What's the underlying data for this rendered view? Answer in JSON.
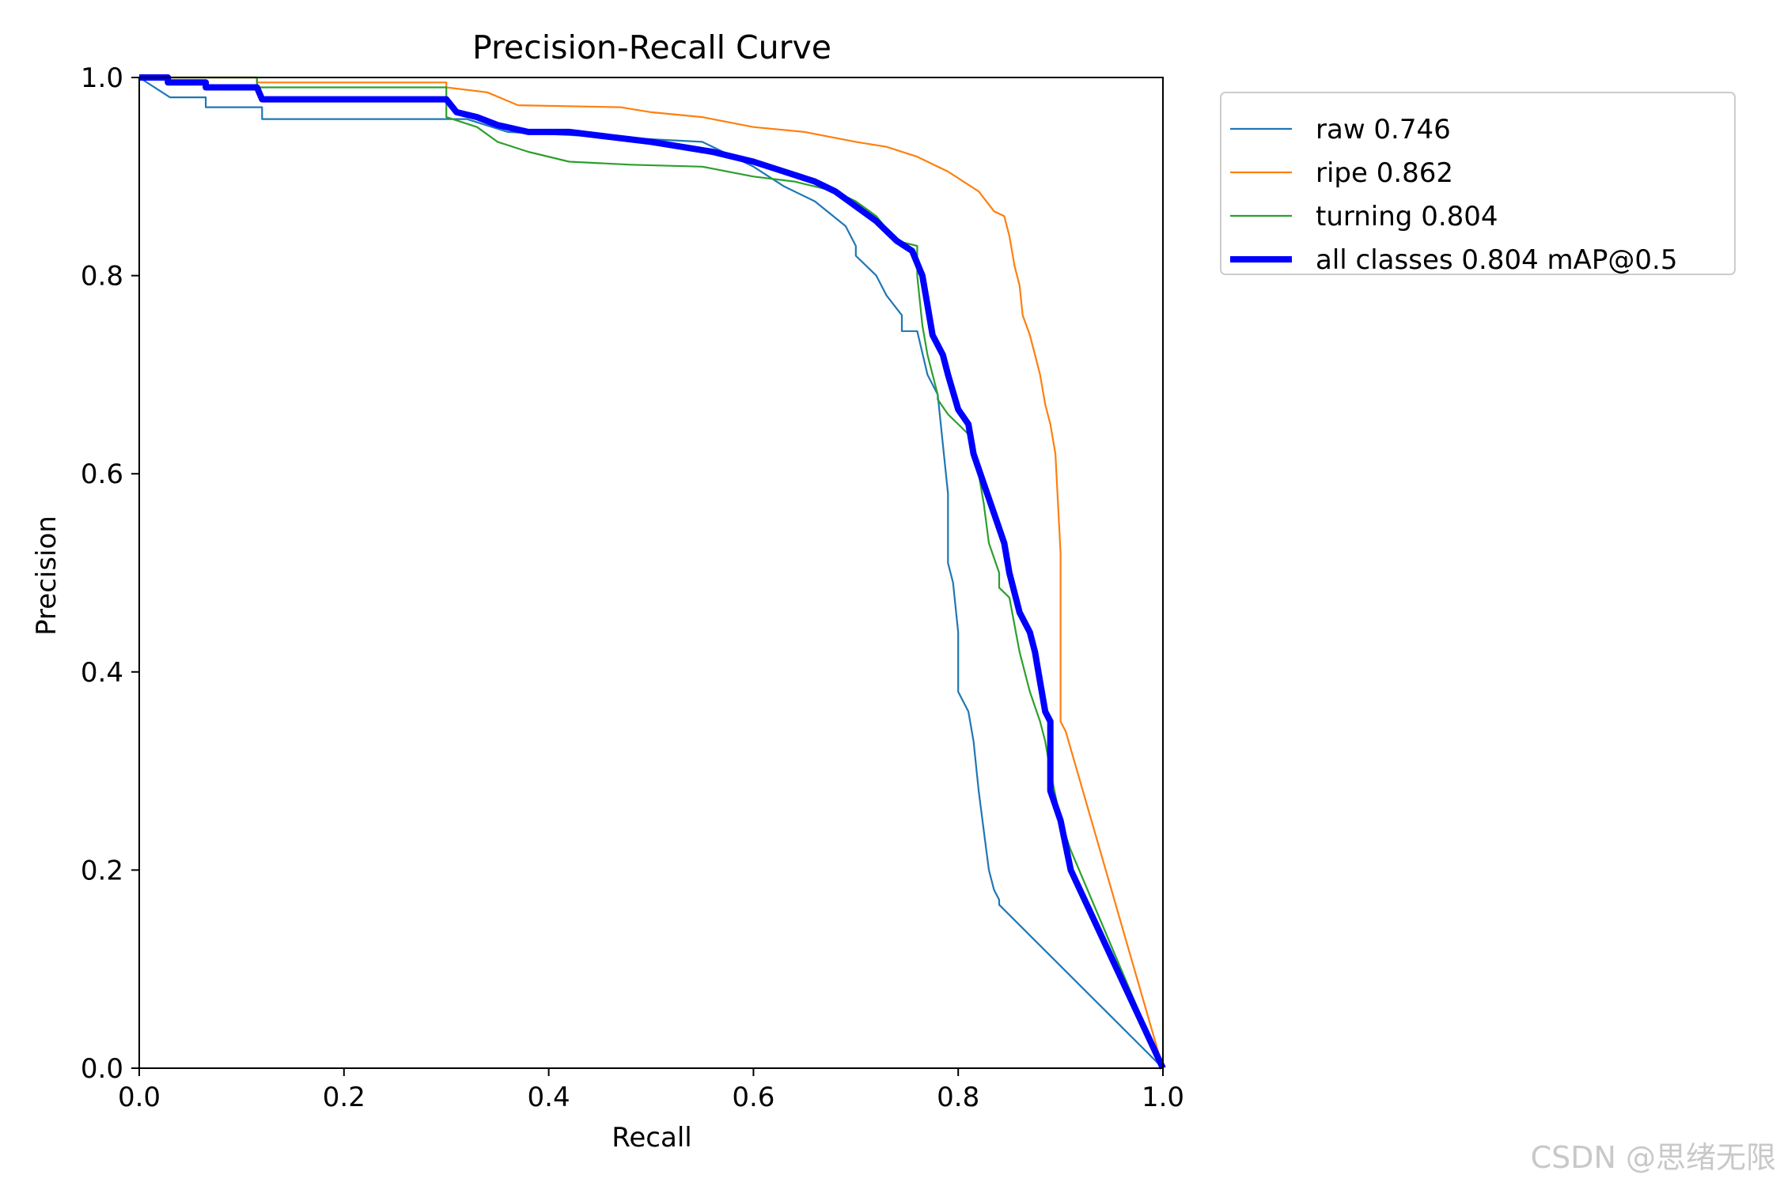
{
  "watermark": "CSDN @思绪无限",
  "chart_data": {
    "type": "line",
    "title": "Precision-Recall Curve",
    "xlabel": "Recall",
    "ylabel": "Precision",
    "xlim": [
      0.0,
      1.0
    ],
    "ylim": [
      0.0,
      1.0
    ],
    "xticks": [
      "0.0",
      "0.2",
      "0.4",
      "0.6",
      "0.8",
      "1.0"
    ],
    "yticks": [
      "0.0",
      "0.2",
      "0.4",
      "0.6",
      "0.8",
      "1.0"
    ],
    "grid": false,
    "legend_position": "outside top-right",
    "series": [
      {
        "name": "raw 0.746",
        "color": "#1f77b4",
        "emphasis": "thin",
        "points": [
          [
            0,
            1.0
          ],
          [
            0.03,
            0.98
          ],
          [
            0.065,
            0.98
          ],
          [
            0.065,
            0.97
          ],
          [
            0.12,
            0.97
          ],
          [
            0.12,
            0.958
          ],
          [
            0.32,
            0.958
          ],
          [
            0.36,
            0.945
          ],
          [
            0.55,
            0.935
          ],
          [
            0.6,
            0.91
          ],
          [
            0.63,
            0.89
          ],
          [
            0.66,
            0.875
          ],
          [
            0.69,
            0.85
          ],
          [
            0.7,
            0.83
          ],
          [
            0.7,
            0.82
          ],
          [
            0.72,
            0.8
          ],
          [
            0.73,
            0.78
          ],
          [
            0.745,
            0.76
          ],
          [
            0.745,
            0.744
          ],
          [
            0.76,
            0.744
          ],
          [
            0.77,
            0.7
          ],
          [
            0.78,
            0.68
          ],
          [
            0.785,
            0.63
          ],
          [
            0.79,
            0.58
          ],
          [
            0.79,
            0.51
          ],
          [
            0.795,
            0.49
          ],
          [
            0.8,
            0.44
          ],
          [
            0.8,
            0.38
          ],
          [
            0.81,
            0.36
          ],
          [
            0.815,
            0.33
          ],
          [
            0.82,
            0.28
          ],
          [
            0.825,
            0.24
          ],
          [
            0.83,
            0.2
          ],
          [
            0.835,
            0.18
          ],
          [
            0.84,
            0.17
          ],
          [
            0.84,
            0.165
          ],
          [
            1.0,
            0.0
          ]
        ]
      },
      {
        "name": "ripe 0.862",
        "color": "#ff7f0e",
        "emphasis": "thin",
        "points": [
          [
            0,
            1.0
          ],
          [
            0.115,
            1.0
          ],
          [
            0.115,
            0.995
          ],
          [
            0.3,
            0.995
          ],
          [
            0.3,
            0.99
          ],
          [
            0.34,
            0.985
          ],
          [
            0.37,
            0.972
          ],
          [
            0.47,
            0.97
          ],
          [
            0.5,
            0.965
          ],
          [
            0.55,
            0.96
          ],
          [
            0.6,
            0.95
          ],
          [
            0.65,
            0.945
          ],
          [
            0.7,
            0.935
          ],
          [
            0.73,
            0.93
          ],
          [
            0.76,
            0.92
          ],
          [
            0.79,
            0.905
          ],
          [
            0.82,
            0.885
          ],
          [
            0.835,
            0.865
          ],
          [
            0.845,
            0.86
          ],
          [
            0.85,
            0.84
          ],
          [
            0.855,
            0.81
          ],
          [
            0.86,
            0.79
          ],
          [
            0.863,
            0.76
          ],
          [
            0.87,
            0.74
          ],
          [
            0.875,
            0.72
          ],
          [
            0.88,
            0.7
          ],
          [
            0.885,
            0.67
          ],
          [
            0.89,
            0.65
          ],
          [
            0.895,
            0.62
          ],
          [
            0.9,
            0.52
          ],
          [
            0.9,
            0.35
          ],
          [
            0.905,
            0.34
          ],
          [
            1.0,
            0.0
          ]
        ]
      },
      {
        "name": "turning 0.804",
        "color": "#2ca02c",
        "emphasis": "thin",
        "points": [
          [
            0,
            1.0
          ],
          [
            0.115,
            1.0
          ],
          [
            0.115,
            0.99
          ],
          [
            0.3,
            0.99
          ],
          [
            0.3,
            0.96
          ],
          [
            0.33,
            0.95
          ],
          [
            0.35,
            0.935
          ],
          [
            0.38,
            0.925
          ],
          [
            0.42,
            0.915
          ],
          [
            0.48,
            0.912
          ],
          [
            0.55,
            0.91
          ],
          [
            0.6,
            0.9
          ],
          [
            0.64,
            0.895
          ],
          [
            0.68,
            0.885
          ],
          [
            0.7,
            0.875
          ],
          [
            0.72,
            0.86
          ],
          [
            0.74,
            0.835
          ],
          [
            0.76,
            0.83
          ],
          [
            0.76,
            0.8
          ],
          [
            0.765,
            0.75
          ],
          [
            0.77,
            0.72
          ],
          [
            0.78,
            0.68
          ],
          [
            0.78,
            0.675
          ],
          [
            0.79,
            0.66
          ],
          [
            0.8,
            0.65
          ],
          [
            0.81,
            0.64
          ],
          [
            0.815,
            0.63
          ],
          [
            0.82,
            0.6
          ],
          [
            0.825,
            0.57
          ],
          [
            0.83,
            0.53
          ],
          [
            0.84,
            0.5
          ],
          [
            0.84,
            0.485
          ],
          [
            0.85,
            0.475
          ],
          [
            0.86,
            0.42
          ],
          [
            0.87,
            0.38
          ],
          [
            0.88,
            0.35
          ],
          [
            0.885,
            0.33
          ],
          [
            0.89,
            0.3
          ],
          [
            0.9,
            0.25
          ],
          [
            0.91,
            0.22
          ],
          [
            1.0,
            0.0
          ]
        ]
      },
      {
        "name": "all classes 0.804 mAP@0.5",
        "color": "#0000ff",
        "emphasis": "thick",
        "points": [
          [
            0,
            1.0
          ],
          [
            0.028,
            1.0
          ],
          [
            0.028,
            0.995
          ],
          [
            0.065,
            0.995
          ],
          [
            0.065,
            0.99
          ],
          [
            0.115,
            0.99
          ],
          [
            0.12,
            0.978
          ],
          [
            0.3,
            0.978
          ],
          [
            0.31,
            0.965
          ],
          [
            0.33,
            0.96
          ],
          [
            0.35,
            0.952
          ],
          [
            0.38,
            0.945
          ],
          [
            0.42,
            0.945
          ],
          [
            0.46,
            0.94
          ],
          [
            0.5,
            0.935
          ],
          [
            0.53,
            0.93
          ],
          [
            0.56,
            0.925
          ],
          [
            0.6,
            0.915
          ],
          [
            0.63,
            0.905
          ],
          [
            0.66,
            0.895
          ],
          [
            0.68,
            0.885
          ],
          [
            0.7,
            0.87
          ],
          [
            0.72,
            0.855
          ],
          [
            0.74,
            0.835
          ],
          [
            0.755,
            0.825
          ],
          [
            0.765,
            0.8
          ],
          [
            0.77,
            0.77
          ],
          [
            0.775,
            0.74
          ],
          [
            0.785,
            0.72
          ],
          [
            0.79,
            0.7
          ],
          [
            0.8,
            0.665
          ],
          [
            0.81,
            0.65
          ],
          [
            0.815,
            0.62
          ],
          [
            0.825,
            0.59
          ],
          [
            0.835,
            0.56
          ],
          [
            0.845,
            0.53
          ],
          [
            0.85,
            0.5
          ],
          [
            0.86,
            0.46
          ],
          [
            0.87,
            0.44
          ],
          [
            0.875,
            0.42
          ],
          [
            0.88,
            0.39
          ],
          [
            0.885,
            0.36
          ],
          [
            0.89,
            0.35
          ],
          [
            0.89,
            0.28
          ],
          [
            0.9,
            0.25
          ],
          [
            0.91,
            0.2
          ],
          [
            1.0,
            0.0
          ]
        ]
      }
    ]
  }
}
